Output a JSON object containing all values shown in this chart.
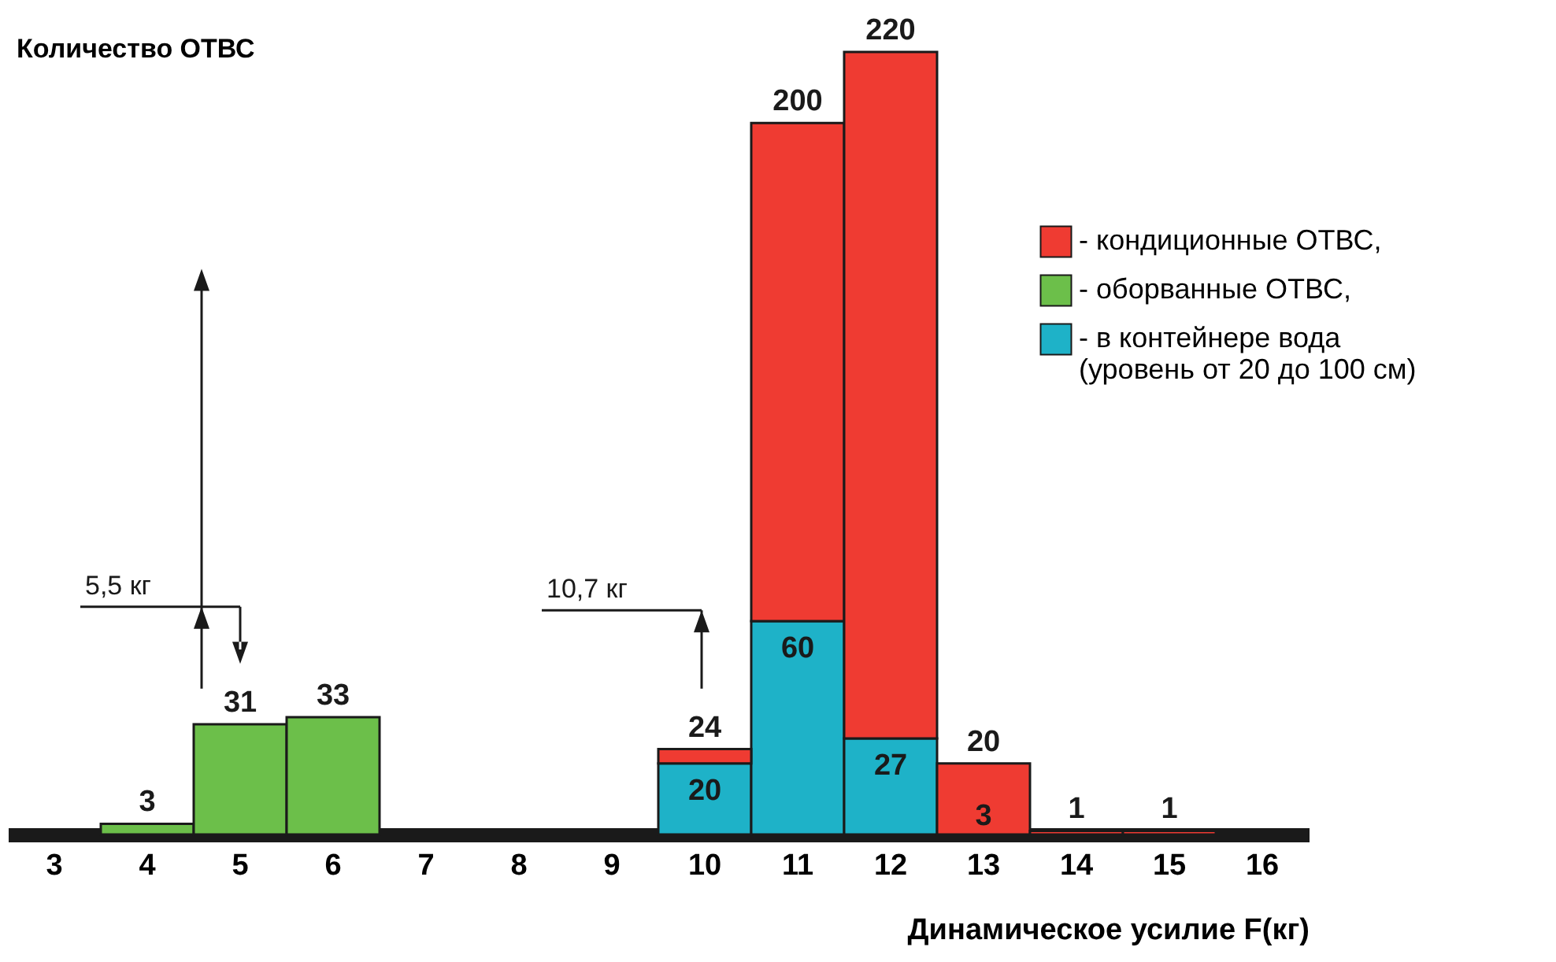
{
  "chart_data": {
    "type": "bar",
    "stacked": true,
    "ylabel": "Количество ОТВС",
    "xlabel": "Динамическое усилие F(кг)",
    "categories": [
      "3",
      "4",
      "5",
      "6",
      "7",
      "8",
      "9",
      "10",
      "11",
      "12",
      "13",
      "14",
      "15",
      "16"
    ],
    "series": [
      {
        "name": "- в контейнере вода (уровень от 20 до 100 см)",
        "color": "#1eb2c8",
        "values": [
          null,
          null,
          null,
          null,
          null,
          null,
          null,
          20,
          60,
          27,
          null,
          null,
          null,
          null
        ],
        "value_labels": [
          null,
          null,
          null,
          null,
          null,
          null,
          null,
          "20",
          "60",
          "27",
          null,
          null,
          null,
          null
        ]
      },
      {
        "name": "- оборванные ОТВС,",
        "color": "#6cbf4a",
        "values": [
          null,
          3,
          31,
          33,
          null,
          null,
          null,
          null,
          null,
          null,
          null,
          null,
          null,
          null
        ]
      },
      {
        "name": "- кондиционные ОТВС,",
        "color": "#ef3b32",
        "values": [
          null,
          null,
          null,
          null,
          null,
          null,
          null,
          4,
          140,
          193,
          20,
          1,
          1,
          null
        ]
      }
    ],
    "totals": [
      null,
      "3",
      "31",
      "33",
      null,
      null,
      null,
      "24",
      "200",
      "220",
      "20",
      "1",
      "1",
      null
    ],
    "annotations": [
      "5,5 кг",
      "10,7 кг",
      "3"
    ],
    "legend": "right",
    "tick_labels": "x",
    "grid": false
  }
}
